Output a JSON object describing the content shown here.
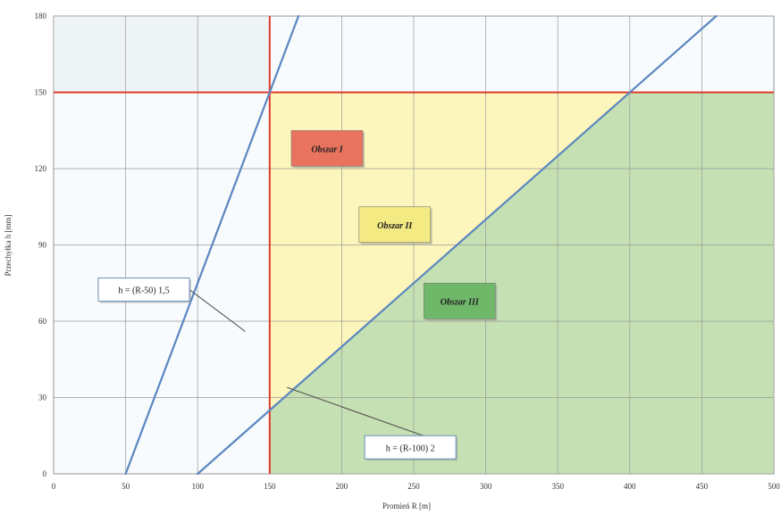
{
  "chart_data": {
    "type": "line",
    "xlabel": "Promień R [m]",
    "ylabel": "Przechyłka h [mm]",
    "xlim": [
      0,
      500
    ],
    "ylim": [
      0,
      180
    ],
    "x_ticks": [
      "0",
      "50",
      "100",
      "150",
      "200",
      "250",
      "300",
      "350",
      "400",
      "450",
      "500"
    ],
    "y_ticks": [
      "0",
      "30",
      "60",
      "90",
      "120",
      "150",
      "180"
    ],
    "grid": true,
    "series": [
      {
        "name": "h = (R-50) 1,5",
        "x": [
          50,
          170
        ],
        "y": [
          0,
          180
        ],
        "color": "#5b86c0"
      },
      {
        "name": "h = (R-100) 2",
        "x": [
          100,
          460
        ],
        "y": [
          0,
          180
        ],
        "color": "#5b86c0"
      }
    ],
    "reference_lines": [
      {
        "orientation": "vertical",
        "value": 150,
        "color": "#e03a2a"
      },
      {
        "orientation": "horizontal",
        "value": 150,
        "color": "#e03a2a"
      }
    ],
    "regions": [
      {
        "label": "Obszar I",
        "color": "#f0a08e",
        "label_bg": "#e8735e",
        "label_at": [
          165,
          135
        ]
      },
      {
        "label": "Obszar II",
        "color": "#fdf4b0",
        "label_bg": "#f3ea84",
        "label_at": [
          212,
          105
        ]
      },
      {
        "label": "Obszar III",
        "color": "#bcdba6",
        "label_bg": "#6fb86a",
        "label_at": [
          257,
          75
        ]
      }
    ],
    "annotations": [
      {
        "text": "h = (R-50) 1,5",
        "box_at": [
          31,
          77
        ],
        "arrow_to": [
          133,
          56
        ]
      },
      {
        "text": "h = (R-100) 2",
        "box_at": [
          216,
          15
        ],
        "arrow_to": [
          162,
          34
        ]
      }
    ]
  }
}
